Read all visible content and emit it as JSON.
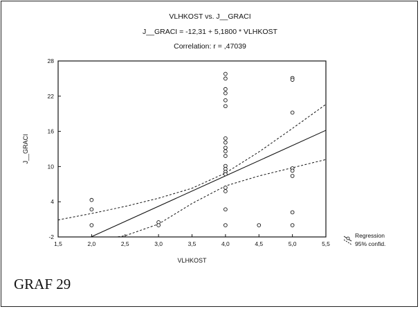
{
  "figure_label": "GRAF 29",
  "chart_data": {
    "type": "scatter",
    "title": "VLHKOST vs. J__GRACI",
    "subtitle": "J__GRACI = -12,31 + 5,1800 * VLHKOST",
    "annotation": "Correlation: r = ,47039",
    "xlabel": "VLHKOST",
    "ylabel": "J__GRACI",
    "xlim": [
      1.5,
      5.5
    ],
    "ylim": [
      -2,
      28
    ],
    "xticks": [
      "1,5",
      "2,0",
      "2,5",
      "3,0",
      "3,5",
      "4,0",
      "4,5",
      "5,0",
      "5,5"
    ],
    "yticks": [
      "-2",
      "4",
      "10",
      "16",
      "22",
      "28"
    ],
    "legend": {
      "placement": "right",
      "entries": [
        "Regression",
        "95% confid."
      ]
    },
    "regression": {
      "intercept": -12.31,
      "slope": 5.18
    },
    "confidence_band": {
      "upper": [
        [
          1.5,
          0.9
        ],
        [
          2.0,
          2.0
        ],
        [
          2.5,
          3.2
        ],
        [
          3.0,
          4.6
        ],
        [
          3.5,
          6.3
        ],
        [
          4.0,
          8.9
        ],
        [
          4.5,
          12.5
        ],
        [
          5.0,
          16.5
        ],
        [
          5.5,
          20.6
        ]
      ],
      "lower": [
        [
          2.0,
          -2.6
        ],
        [
          2.5,
          -1.8
        ],
        [
          3.0,
          0.2
        ],
        [
          3.5,
          3.7
        ],
        [
          4.0,
          6.7
        ],
        [
          4.5,
          8.4
        ],
        [
          5.0,
          9.8
        ],
        [
          5.5,
          11.2
        ]
      ]
    },
    "points": [
      {
        "x": 2.0,
        "y": 4.3
      },
      {
        "x": 2.0,
        "y": 2.7
      },
      {
        "x": 2.0,
        "y": 0.0
      },
      {
        "x": 3.0,
        "y": 0.5
      },
      {
        "x": 3.0,
        "y": 0.0
      },
      {
        "x": 4.0,
        "y": 25.8
      },
      {
        "x": 4.0,
        "y": 25.0
      },
      {
        "x": 4.0,
        "y": 23.2
      },
      {
        "x": 4.0,
        "y": 22.5
      },
      {
        "x": 4.0,
        "y": 21.3
      },
      {
        "x": 4.0,
        "y": 20.3
      },
      {
        "x": 4.0,
        "y": 14.8
      },
      {
        "x": 4.0,
        "y": 14.1
      },
      {
        "x": 4.0,
        "y": 13.2
      },
      {
        "x": 4.0,
        "y": 12.6
      },
      {
        "x": 4.0,
        "y": 11.8
      },
      {
        "x": 4.0,
        "y": 10.1
      },
      {
        "x": 4.0,
        "y": 9.6
      },
      {
        "x": 4.0,
        "y": 9.1
      },
      {
        "x": 4.0,
        "y": 8.7
      },
      {
        "x": 4.0,
        "y": 6.4
      },
      {
        "x": 4.0,
        "y": 5.8
      },
      {
        "x": 4.0,
        "y": 2.7
      },
      {
        "x": 4.0,
        "y": 0.0
      },
      {
        "x": 4.5,
        "y": 0.0
      },
      {
        "x": 5.0,
        "y": 25.1
      },
      {
        "x": 5.0,
        "y": 24.8
      },
      {
        "x": 5.0,
        "y": 19.2
      },
      {
        "x": 5.0,
        "y": 9.7
      },
      {
        "x": 5.0,
        "y": 9.3
      },
      {
        "x": 5.0,
        "y": 8.4
      },
      {
        "x": 5.0,
        "y": 2.2
      },
      {
        "x": 5.0,
        "y": 0.0
      }
    ]
  }
}
